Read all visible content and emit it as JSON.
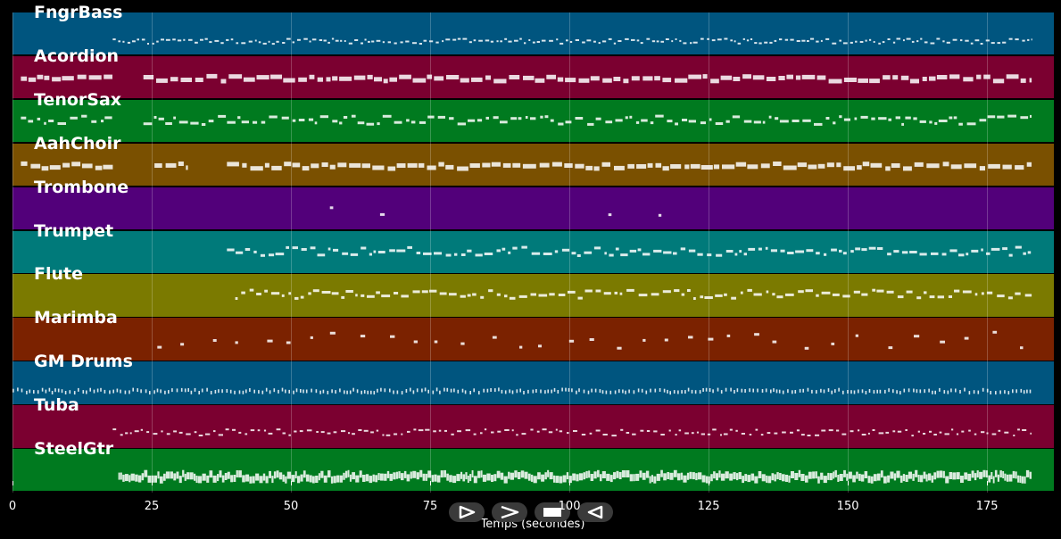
{
  "chart_data": {
    "type": "piano-roll",
    "xlabel": "Temps (secondes)",
    "x_ticks": [
      0,
      25,
      50,
      75,
      100,
      125,
      150,
      175
    ],
    "xlim": [
      0,
      187
    ],
    "tracks": [
      {
        "name": "FngrBass",
        "color": "#00557f",
        "segments": [
          [
            18,
            183
          ]
        ],
        "style": "dense-low"
      },
      {
        "name": "Acordion",
        "color": "#7b0030",
        "segments": [
          [
            1.5,
            18
          ],
          [
            23.5,
            183
          ]
        ],
        "style": "chords"
      },
      {
        "name": "TenorSax",
        "color": "#007a1f",
        "segments": [
          [
            1.5,
            18
          ],
          [
            23.5,
            183
          ]
        ],
        "style": "melody"
      },
      {
        "name": "AahChoir",
        "color": "#7a5000",
        "segments": [
          [
            1.5,
            18
          ],
          [
            25.5,
            31.5
          ],
          [
            38.5,
            183
          ]
        ],
        "style": "chords"
      },
      {
        "name": "Trombone",
        "color": "#52007a",
        "segments": [
          [
            57,
            60
          ],
          [
            66,
            69
          ],
          [
            107,
            110
          ],
          [
            116,
            119
          ]
        ],
        "style": "sparse"
      },
      {
        "name": "Trumpet",
        "color": "#007a7a",
        "segments": [
          [
            38.5,
            183
          ]
        ],
        "style": "melody"
      },
      {
        "name": "Flute",
        "color": "#7b7a00",
        "segments": [
          [
            40,
            183
          ]
        ],
        "style": "melody"
      },
      {
        "name": "Marimba",
        "color": "#7b2200",
        "segments": [
          [
            26,
            183
          ]
        ],
        "style": "sparse"
      },
      {
        "name": "GM Drums",
        "color": "#00557f",
        "segments": [
          [
            0,
            183
          ]
        ],
        "style": "drums"
      },
      {
        "name": "Tuba",
        "color": "#7b0030",
        "segments": [
          [
            18,
            183
          ]
        ],
        "style": "bass"
      },
      {
        "name": "SteelGtr",
        "color": "#007a1f",
        "segments": [
          [
            19,
            183
          ]
        ],
        "style": "dense"
      }
    ]
  },
  "controls": [
    {
      "name": "play",
      "icon": "play-icon"
    },
    {
      "name": "forward",
      "icon": "forward-icon"
    },
    {
      "name": "stop",
      "icon": "stop-icon"
    },
    {
      "name": "rewind",
      "icon": "rewind-icon"
    }
  ]
}
